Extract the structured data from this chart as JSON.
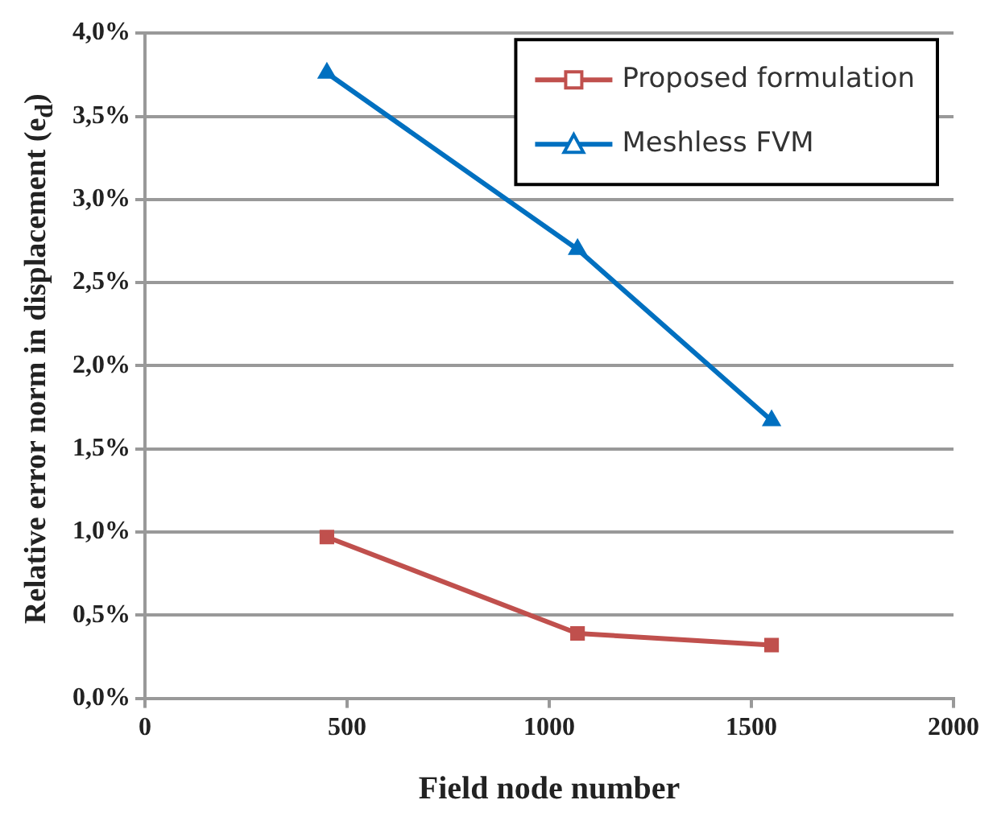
{
  "chart_data": {
    "type": "line",
    "xlabel": "Field node number",
    "ylabel": "Relative error norm in displacement (e$_{d}$)",
    "xlim": [
      0,
      2000
    ],
    "xticks": [
      0,
      500,
      1000,
      1500,
      2000
    ],
    "ylim": [
      0,
      4
    ],
    "yticks": [
      {
        "value": 0,
        "label": "0,0%"
      },
      {
        "value": 0.5,
        "label": "0,5%"
      },
      {
        "value": 1,
        "label": "1,0%"
      },
      {
        "value": 1.5,
        "label": "1,5%"
      },
      {
        "value": 2,
        "label": "2,0%"
      },
      {
        "value": 2.5,
        "label": "2,5%"
      },
      {
        "value": 3,
        "label": "3,0%"
      },
      {
        "value": 3.5,
        "label": "3,5%"
      },
      {
        "value": 4,
        "label": "4,0%"
      }
    ],
    "x": [
      450,
      1070,
      1550
    ],
    "series": [
      {
        "name": "Proposed formulation",
        "color": "#c0504d",
        "marker": "square",
        "values": [
          0.97,
          0.39,
          0.32
        ]
      },
      {
        "name": "Meshless FVM",
        "color": "#0070c0",
        "marker": "triangle",
        "values": [
          3.76,
          2.7,
          1.67
        ]
      }
    ],
    "grid": "y",
    "legend": "top right"
  }
}
